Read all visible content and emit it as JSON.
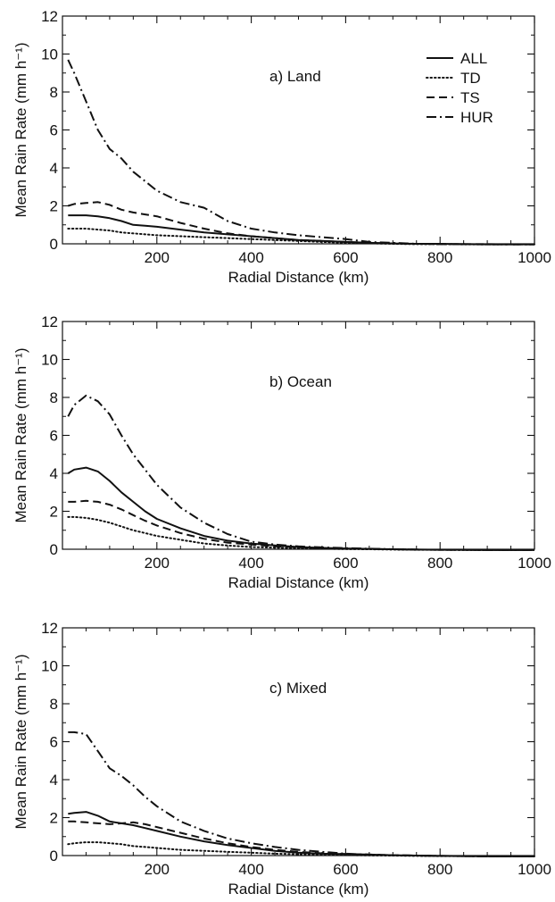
{
  "chart_data": [
    {
      "type": "line",
      "panel_label": "a) Land",
      "xlabel": "Radial Distance (km)",
      "ylabel": "Mean Rain Rate (mm h⁻¹)",
      "xlim": [
        0,
        1000
      ],
      "ylim": [
        0,
        12
      ],
      "x_ticks": [
        200,
        400,
        600,
        800,
        1000
      ],
      "y_ticks": [
        0,
        2,
        4,
        6,
        8,
        10,
        12
      ],
      "grid": false,
      "legend_position": "top-right",
      "x": [
        12,
        25,
        50,
        75,
        100,
        125,
        150,
        175,
        200,
        250,
        300,
        350,
        400,
        450,
        500,
        550,
        600,
        650,
        700,
        750,
        800,
        850,
        900,
        950,
        1000
      ],
      "series": [
        {
          "name": "ALL",
          "style": "solid",
          "values": [
            1.5,
            1.5,
            1.5,
            1.45,
            1.35,
            1.2,
            1.0,
            0.95,
            0.9,
            0.75,
            0.6,
            0.5,
            0.4,
            0.3,
            0.2,
            0.15,
            0.1,
            0.05,
            0.02,
            0.0,
            0.0,
            -0.02,
            -0.03,
            -0.03,
            -0.03
          ]
        },
        {
          "name": "TD",
          "style": "dotted",
          "values": [
            0.8,
            0.8,
            0.8,
            0.75,
            0.7,
            0.6,
            0.55,
            0.5,
            0.45,
            0.4,
            0.35,
            0.3,
            0.25,
            0.2,
            0.15,
            0.1,
            0.05,
            0.03,
            0.0,
            -0.02,
            -0.02,
            -0.03,
            -0.03,
            -0.03,
            -0.03
          ]
        },
        {
          "name": "TS",
          "style": "dashed",
          "values": [
            2.0,
            2.1,
            2.15,
            2.2,
            2.05,
            1.8,
            1.65,
            1.55,
            1.45,
            1.1,
            0.8,
            0.55,
            0.4,
            0.3,
            0.2,
            0.15,
            0.1,
            0.05,
            0.02,
            0.0,
            -0.01,
            -0.02,
            -0.02,
            -0.03,
            -0.03
          ]
        },
        {
          "name": "HUR",
          "style": "dashdot",
          "values": [
            9.7,
            9.0,
            7.5,
            6.0,
            5.0,
            4.5,
            3.8,
            3.3,
            2.8,
            2.2,
            1.9,
            1.2,
            0.8,
            0.6,
            0.45,
            0.35,
            0.25,
            0.1,
            0.05,
            0.0,
            -0.02,
            -0.02,
            -0.03,
            -0.03,
            -0.03
          ]
        }
      ]
    },
    {
      "type": "line",
      "panel_label": "b) Ocean",
      "xlabel": "Radial Distance (km)",
      "ylabel": "Mean Rain Rate (mm h⁻¹)",
      "xlim": [
        0,
        1000
      ],
      "ylim": [
        0,
        12
      ],
      "x_ticks": [
        200,
        400,
        600,
        800,
        1000
      ],
      "y_ticks": [
        0,
        2,
        4,
        6,
        8,
        10,
        12
      ],
      "grid": false,
      "x": [
        12,
        25,
        50,
        75,
        100,
        125,
        150,
        175,
        200,
        250,
        300,
        350,
        400,
        450,
        500,
        550,
        600,
        650,
        700,
        750,
        800,
        850,
        900,
        950,
        1000
      ],
      "series": [
        {
          "name": "ALL",
          "style": "solid",
          "values": [
            4.0,
            4.2,
            4.3,
            4.1,
            3.6,
            3.0,
            2.5,
            2.0,
            1.6,
            1.1,
            0.7,
            0.45,
            0.3,
            0.2,
            0.12,
            0.07,
            0.04,
            0.02,
            0.0,
            -0.02,
            -0.03,
            -0.03,
            -0.04,
            -0.04,
            -0.04
          ]
        },
        {
          "name": "TD",
          "style": "dotted",
          "values": [
            1.7,
            1.7,
            1.65,
            1.55,
            1.4,
            1.2,
            1.0,
            0.85,
            0.7,
            0.5,
            0.3,
            0.2,
            0.12,
            0.08,
            0.05,
            0.03,
            0.01,
            0.0,
            -0.02,
            -0.03,
            -0.03,
            -0.04,
            -0.04,
            -0.04,
            -0.04
          ]
        },
        {
          "name": "TS",
          "style": "dashed",
          "values": [
            2.5,
            2.5,
            2.55,
            2.5,
            2.35,
            2.1,
            1.8,
            1.5,
            1.25,
            0.85,
            0.55,
            0.35,
            0.25,
            0.15,
            0.1,
            0.06,
            0.03,
            0.01,
            0.0,
            -0.02,
            -0.03,
            -0.03,
            -0.04,
            -0.04,
            -0.04
          ]
        },
        {
          "name": "HUR",
          "style": "dashdot",
          "values": [
            7.0,
            7.6,
            8.1,
            7.8,
            7.1,
            6.0,
            5.0,
            4.2,
            3.4,
            2.2,
            1.4,
            0.8,
            0.4,
            0.25,
            0.15,
            0.1,
            0.06,
            0.03,
            0.0,
            -0.02,
            -0.03,
            -0.03,
            -0.04,
            -0.04,
            -0.04
          ]
        }
      ]
    },
    {
      "type": "line",
      "panel_label": "c) Mixed",
      "xlabel": "Radial Distance (km)",
      "ylabel": "Mean Rain Rate (mm h⁻¹)",
      "xlim": [
        0,
        1000
      ],
      "ylim": [
        0,
        12
      ],
      "x_ticks": [
        200,
        400,
        600,
        800,
        1000
      ],
      "y_ticks": [
        0,
        2,
        4,
        6,
        8,
        10,
        12
      ],
      "grid": false,
      "x": [
        12,
        25,
        50,
        75,
        100,
        125,
        150,
        175,
        200,
        250,
        300,
        350,
        400,
        450,
        500,
        550,
        600,
        650,
        700,
        750,
        800,
        850,
        900,
        950,
        1000
      ],
      "series": [
        {
          "name": "ALL",
          "style": "solid",
          "values": [
            2.2,
            2.25,
            2.3,
            2.1,
            1.8,
            1.7,
            1.6,
            1.45,
            1.3,
            1.0,
            0.75,
            0.55,
            0.4,
            0.25,
            0.15,
            0.1,
            0.08,
            0.05,
            0.02,
            0.0,
            -0.02,
            -0.03,
            -0.04,
            -0.04,
            -0.04
          ]
        },
        {
          "name": "TD",
          "style": "dotted",
          "values": [
            0.6,
            0.65,
            0.7,
            0.7,
            0.65,
            0.6,
            0.5,
            0.45,
            0.4,
            0.3,
            0.25,
            0.2,
            0.15,
            0.1,
            0.07,
            0.05,
            0.03,
            0.01,
            0.0,
            -0.02,
            -0.03,
            -0.03,
            -0.04,
            -0.04,
            -0.04
          ]
        },
        {
          "name": "TS",
          "style": "dashed",
          "values": [
            1.8,
            1.8,
            1.75,
            1.7,
            1.65,
            1.7,
            1.75,
            1.65,
            1.5,
            1.2,
            0.9,
            0.65,
            0.45,
            0.3,
            0.2,
            0.12,
            0.08,
            0.05,
            0.02,
            0.0,
            -0.02,
            -0.03,
            -0.04,
            -0.04,
            -0.04
          ]
        },
        {
          "name": "HUR",
          "style": "dashdot",
          "values": [
            6.5,
            6.5,
            6.4,
            5.5,
            4.6,
            4.2,
            3.7,
            3.1,
            2.6,
            1.8,
            1.3,
            0.9,
            0.65,
            0.45,
            0.3,
            0.2,
            0.1,
            0.05,
            0.02,
            0.0,
            -0.02,
            -0.03,
            -0.04,
            -0.04,
            -0.04
          ]
        }
      ]
    }
  ]
}
